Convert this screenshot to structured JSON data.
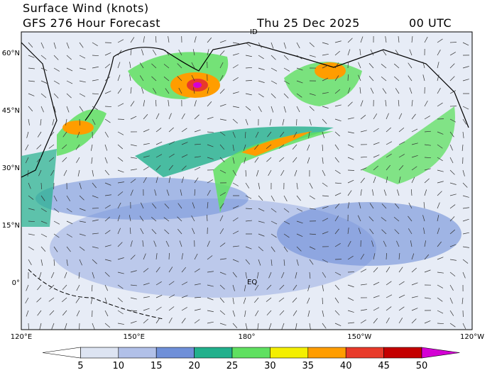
{
  "header": {
    "title": "Surface Wind (knots)",
    "subtitle": "GFS 276 Hour Forecast",
    "date": "Thu 25 Dec 2025",
    "time": "00 UTC"
  },
  "map": {
    "lat_labels": [
      "60°N",
      "45°N",
      "30°N",
      "15°N",
      "0°"
    ],
    "lon_labels": [
      "120°E",
      "150°E",
      "180°",
      "150°W",
      "120°W"
    ],
    "place_labels": [
      "ID",
      "EQ"
    ]
  },
  "colorbar": {
    "labels": [
      5,
      10,
      15,
      20,
      25,
      30,
      35,
      40,
      45,
      50
    ],
    "colors": [
      "#ffffff",
      "#dde4f2",
      "#b1c0e8",
      "#6f8fd8",
      "#22b08c",
      "#5fe060",
      "#f4ef00",
      "#ff9d00",
      "#e83a2a",
      "#c40000",
      "#d400d4"
    ]
  }
}
